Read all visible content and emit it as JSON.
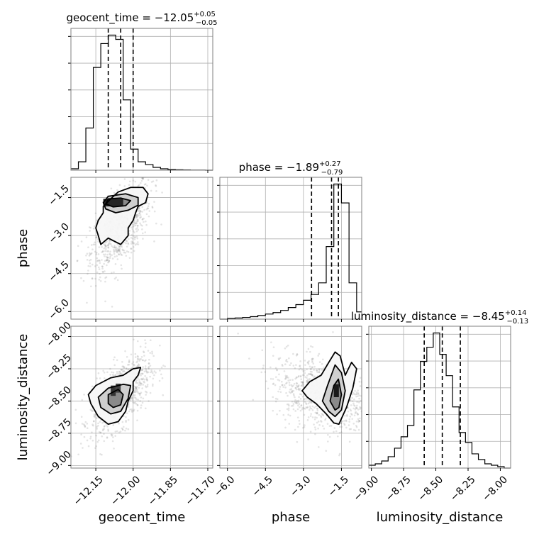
{
  "chart_data": {
    "type": "corner",
    "parameters": [
      {
        "name": "geocent_time",
        "range": [
          -12.25,
          -11.68
        ],
        "ticks": [
          -12.15,
          -12.0,
          -11.85,
          -11.7
        ],
        "tick_labels": [
          "−12.15",
          "−12.00",
          "−11.85",
          "−11.70"
        ]
      },
      {
        "name": "phase",
        "range": [
          -6.3,
          -0.7
        ],
        "ticks": [
          -6.0,
          -4.5,
          -3.0,
          -1.5
        ],
        "tick_labels": [
          "−6.0",
          "−4.5",
          "−3.0",
          "−1.5"
        ]
      },
      {
        "name": "luminosity_distance",
        "range": [
          -9.02,
          -7.92
        ],
        "ticks": [
          -9.0,
          -8.75,
          -8.5,
          -8.25,
          -8.0
        ],
        "tick_labels": [
          "−9.00",
          "−8.75",
          "−8.50",
          "−8.25",
          "−8.00"
        ]
      }
    ],
    "titles": [
      {
        "label": "geocent_time = −12.05",
        "sup": "+0.05",
        "sub": "−0.05"
      },
      {
        "label": "phase = −1.89",
        "sup": "+0.27",
        "sub": "−0.79"
      },
      {
        "label": "luminosity_distance = −8.45",
        "sup": "+0.14",
        "sub": "−0.13"
      }
    ],
    "histograms": [
      {
        "param": "geocent_time",
        "bin_edges": [
          -12.25,
          -12.22,
          -12.19,
          -12.16,
          -12.13,
          -12.1,
          -12.07,
          -12.04,
          -12.01,
          -11.98,
          -11.95,
          -11.92,
          -11.89,
          -11.86,
          -11.83,
          -11.8,
          -11.77,
          -11.74,
          -11.71,
          -11.68
        ],
        "counts": [
          0.01,
          0.06,
          0.3,
          0.73,
          0.9,
          0.96,
          0.93,
          0.5,
          0.15,
          0.06,
          0.04,
          0.02,
          0.01,
          0.005,
          0.003,
          0.002,
          0.001,
          0.001,
          0.0
        ],
        "quantiles": [
          -12.1,
          -12.05,
          -12.0
        ]
      },
      {
        "param": "phase",
        "bin_edges": [
          -6.3,
          -6.0,
          -5.7,
          -5.4,
          -5.1,
          -4.8,
          -4.5,
          -4.2,
          -3.9,
          -3.6,
          -3.3,
          -3.0,
          -2.7,
          -2.4,
          -2.1,
          -1.8,
          -1.5,
          -1.2,
          -0.9,
          -0.7
        ],
        "counts": [
          0.0,
          0.005,
          0.008,
          0.012,
          0.017,
          0.025,
          0.035,
          0.045,
          0.06,
          0.08,
          0.1,
          0.13,
          0.17,
          0.25,
          0.5,
          0.93,
          0.8,
          0.25,
          0.05
        ],
        "quantiles": [
          -2.68,
          -1.89,
          -1.62
        ]
      },
      {
        "param": "luminosity_distance",
        "bin_edges": [
          -9.02,
          -8.97,
          -8.92,
          -8.87,
          -8.82,
          -8.77,
          -8.72,
          -8.67,
          -8.62,
          -8.57,
          -8.52,
          -8.47,
          -8.42,
          -8.37,
          -8.32,
          -8.27,
          -8.22,
          -8.17,
          -8.12,
          -8.07,
          -8.02,
          -7.97,
          -7.92
        ],
        "counts": [
          0.02,
          0.03,
          0.05,
          0.08,
          0.14,
          0.22,
          0.3,
          0.55,
          0.75,
          0.85,
          0.95,
          0.8,
          0.65,
          0.43,
          0.25,
          0.18,
          0.1,
          0.06,
          0.03,
          0.02,
          0.01,
          0.0
        ],
        "quantiles": [
          -8.59,
          -8.45,
          -8.31
        ]
      }
    ],
    "pairs": [
      {
        "x": "geocent_time",
        "y": "phase",
        "scatter_center": [
          -12.05,
          -2.6
        ],
        "scatter_spread": [
          0.06,
          0.9
        ],
        "outer_contour": [
          [
            -12.13,
            -3.35
          ],
          [
            -12.14,
            -3.0
          ],
          [
            -12.15,
            -2.7
          ],
          [
            -12.14,
            -2.4
          ],
          [
            -12.12,
            -2.1
          ],
          [
            -12.12,
            -1.85
          ],
          [
            -12.09,
            -1.55
          ],
          [
            -12.06,
            -1.28
          ],
          [
            -12.01,
            -1.1
          ],
          [
            -11.96,
            -1.1
          ],
          [
            -11.94,
            -1.35
          ],
          [
            -11.95,
            -1.7
          ],
          [
            -11.98,
            -1.85
          ],
          [
            -11.99,
            -2.1
          ],
          [
            -12.0,
            -2.4
          ],
          [
            -12.02,
            -2.7
          ],
          [
            -12.02,
            -3.0
          ],
          [
            -12.05,
            -3.35
          ],
          [
            -12.08,
            -3.2
          ],
          [
            -12.1,
            -3.1
          ],
          [
            -12.13,
            -3.35
          ]
        ],
        "mid_contour": [
          [
            -12.11,
            -1.95
          ],
          [
            -12.12,
            -1.7
          ],
          [
            -12.1,
            -1.45
          ],
          [
            -12.03,
            -1.35
          ],
          [
            -11.98,
            -1.5
          ],
          [
            -11.98,
            -1.8
          ],
          [
            -12.02,
            -2.0
          ],
          [
            -12.07,
            -2.1
          ],
          [
            -12.11,
            -1.95
          ]
        ],
        "inner_contour": [
          [
            -12.11,
            -1.75
          ],
          [
            -12.1,
            -1.55
          ],
          [
            -12.05,
            -1.52
          ],
          [
            -12.01,
            -1.62
          ],
          [
            -12.03,
            -1.82
          ],
          [
            -12.08,
            -1.87
          ],
          [
            -12.11,
            -1.75
          ]
        ],
        "density_cells": [
          {
            "x": -12.08,
            "y": -1.7,
            "w": 0.08,
            "h": 0.3,
            "shade": 0.15
          }
        ]
      },
      {
        "x": "geocent_time",
        "y": "luminosity_distance",
        "scatter_center": [
          -12.05,
          -8.45
        ],
        "scatter_spread": [
          0.06,
          0.15
        ],
        "outer_contour": [
          [
            -12.17,
            -8.52
          ],
          [
            -12.18,
            -8.45
          ],
          [
            -12.15,
            -8.38
          ],
          [
            -12.09,
            -8.32
          ],
          [
            -12.04,
            -8.3
          ],
          [
            -12.0,
            -8.25
          ],
          [
            -11.97,
            -8.24
          ],
          [
            -11.98,
            -8.3
          ],
          [
            -12.0,
            -8.35
          ],
          [
            -12.0,
            -8.42
          ],
          [
            -12.02,
            -8.5
          ],
          [
            -12.03,
            -8.58
          ],
          [
            -12.06,
            -8.66
          ],
          [
            -12.1,
            -8.68
          ],
          [
            -12.14,
            -8.62
          ],
          [
            -12.17,
            -8.52
          ]
        ],
        "mid_contour": [
          [
            -12.13,
            -8.55
          ],
          [
            -12.14,
            -8.47
          ],
          [
            -12.1,
            -8.4
          ],
          [
            -12.04,
            -8.37
          ],
          [
            -12.01,
            -8.38
          ],
          [
            -12.02,
            -8.48
          ],
          [
            -12.05,
            -8.58
          ],
          [
            -12.09,
            -8.6
          ],
          [
            -12.13,
            -8.55
          ]
        ],
        "inner_contour": [
          [
            -12.1,
            -8.52
          ],
          [
            -12.1,
            -8.45
          ],
          [
            -12.06,
            -8.41
          ],
          [
            -12.04,
            -8.45
          ],
          [
            -12.05,
            -8.53
          ],
          [
            -12.08,
            -8.55
          ],
          [
            -12.1,
            -8.52
          ]
        ],
        "density_cells": [
          {
            "x": -12.08,
            "y": -8.42,
            "w": 0.02,
            "h": 0.08,
            "shade": 0.2
          },
          {
            "x": -12.06,
            "y": -8.4,
            "w": 0.02,
            "h": 0.07,
            "shade": 0.25
          }
        ]
      },
      {
        "x": "phase",
        "y": "luminosity_distance",
        "scatter_center": [
          -2.2,
          -8.45
        ],
        "scatter_spread": [
          1.0,
          0.15
        ],
        "outer_contour": [
          [
            -3.05,
            -8.42
          ],
          [
            -2.75,
            -8.35
          ],
          [
            -2.3,
            -8.3
          ],
          [
            -2.0,
            -8.2
          ],
          [
            -1.75,
            -8.12
          ],
          [
            -1.55,
            -8.15
          ],
          [
            -1.35,
            -8.3
          ],
          [
            -1.1,
            -8.2
          ],
          [
            -0.9,
            -8.25
          ],
          [
            -1.05,
            -8.4
          ],
          [
            -1.3,
            -8.55
          ],
          [
            -1.6,
            -8.68
          ],
          [
            -1.8,
            -8.67
          ],
          [
            -2.1,
            -8.6
          ],
          [
            -2.5,
            -8.52
          ],
          [
            -2.85,
            -8.47
          ],
          [
            -3.05,
            -8.42
          ]
        ],
        "mid_contour": [
          [
            -2.25,
            -8.5
          ],
          [
            -2.05,
            -8.38
          ],
          [
            -1.75,
            -8.22
          ],
          [
            -1.5,
            -8.28
          ],
          [
            -1.35,
            -8.42
          ],
          [
            -1.5,
            -8.57
          ],
          [
            -1.75,
            -8.62
          ],
          [
            -2.0,
            -8.58
          ],
          [
            -2.25,
            -8.5
          ]
        ],
        "inner_contour": [
          [
            -1.95,
            -8.5
          ],
          [
            -1.8,
            -8.38
          ],
          [
            -1.62,
            -8.33
          ],
          [
            -1.5,
            -8.45
          ],
          [
            -1.6,
            -8.55
          ],
          [
            -1.75,
            -8.57
          ],
          [
            -1.95,
            -8.5
          ]
        ],
        "density_cells": [
          {
            "x": -1.7,
            "y": -8.42,
            "w": 0.2,
            "h": 0.1,
            "shade": 0.1
          }
        ]
      }
    ]
  }
}
